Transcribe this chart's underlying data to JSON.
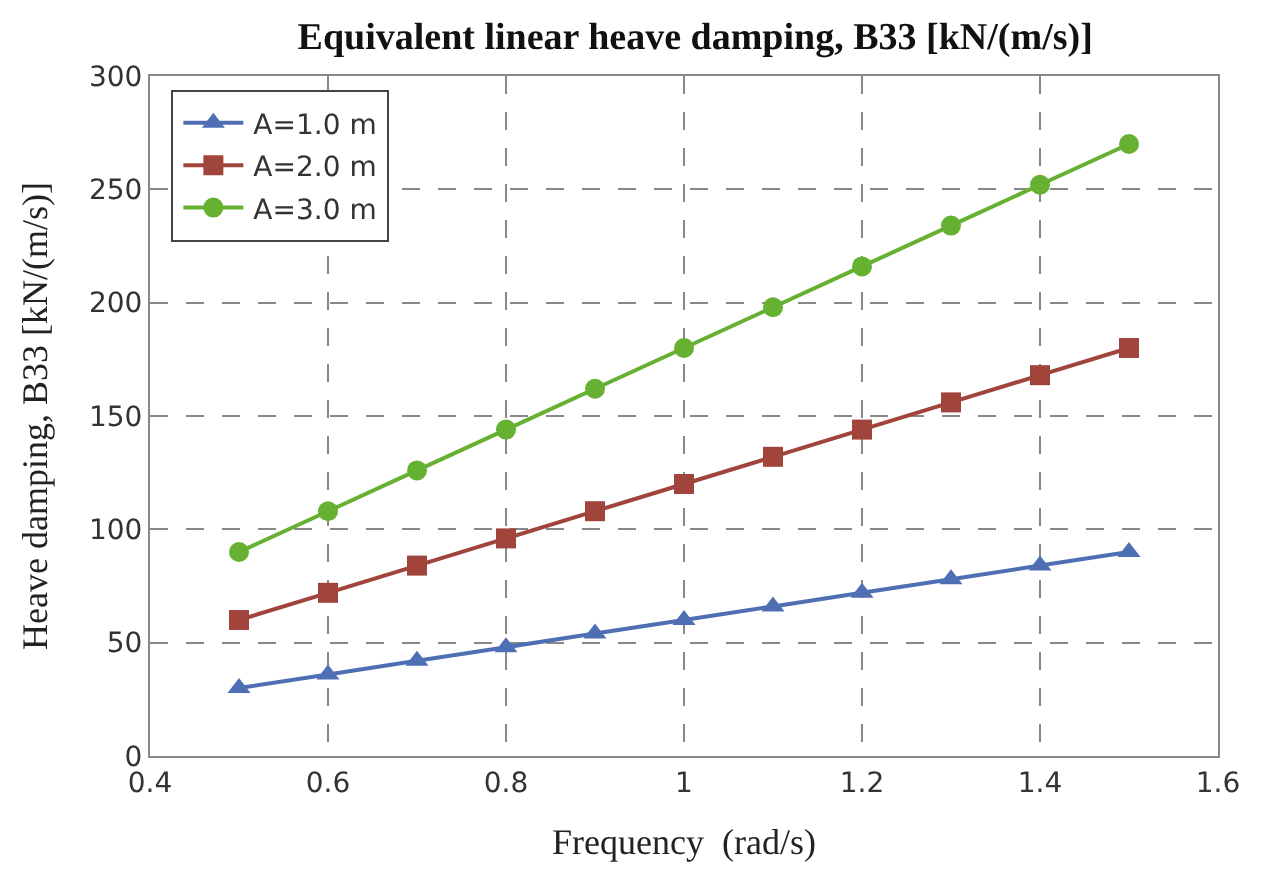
{
  "chart_data": {
    "type": "line",
    "title": "Equivalent linear heave damping, B33 [kN/(m/s)]",
    "xlabel": "Frequency  (rad/s)",
    "ylabel": "Heave damping, B33 [kN/(m/s)]",
    "x": [
      0.5,
      0.6,
      0.7,
      0.8,
      0.9,
      1.0,
      1.1,
      1.2,
      1.3,
      1.4,
      1.5
    ],
    "series": [
      {
        "name": "A=1.0 m",
        "color": "#4f6fb5",
        "marker": "triangle",
        "values": [
          30,
          36,
          42,
          48,
          54,
          60,
          66,
          72,
          78,
          84,
          90
        ]
      },
      {
        "name": "A=2.0 m",
        "color": "#a0443c",
        "marker": "square",
        "values": [
          60,
          72,
          84,
          96,
          108,
          120,
          132,
          144,
          156,
          168,
          180
        ]
      },
      {
        "name": "A=3.0 m",
        "color": "#66b032",
        "marker": "circle",
        "values": [
          90,
          108,
          126,
          144,
          162,
          180,
          198,
          216,
          234,
          252,
          270
        ]
      }
    ],
    "xlim": [
      0.4,
      1.6
    ],
    "xticks": [
      0.4,
      0.6,
      0.8,
      1,
      1.2,
      1.4,
      1.6
    ],
    "ylim": [
      0,
      300
    ],
    "yticks": [
      0,
      50,
      100,
      150,
      200,
      250,
      300
    ],
    "grid": true,
    "legend": "top left"
  }
}
